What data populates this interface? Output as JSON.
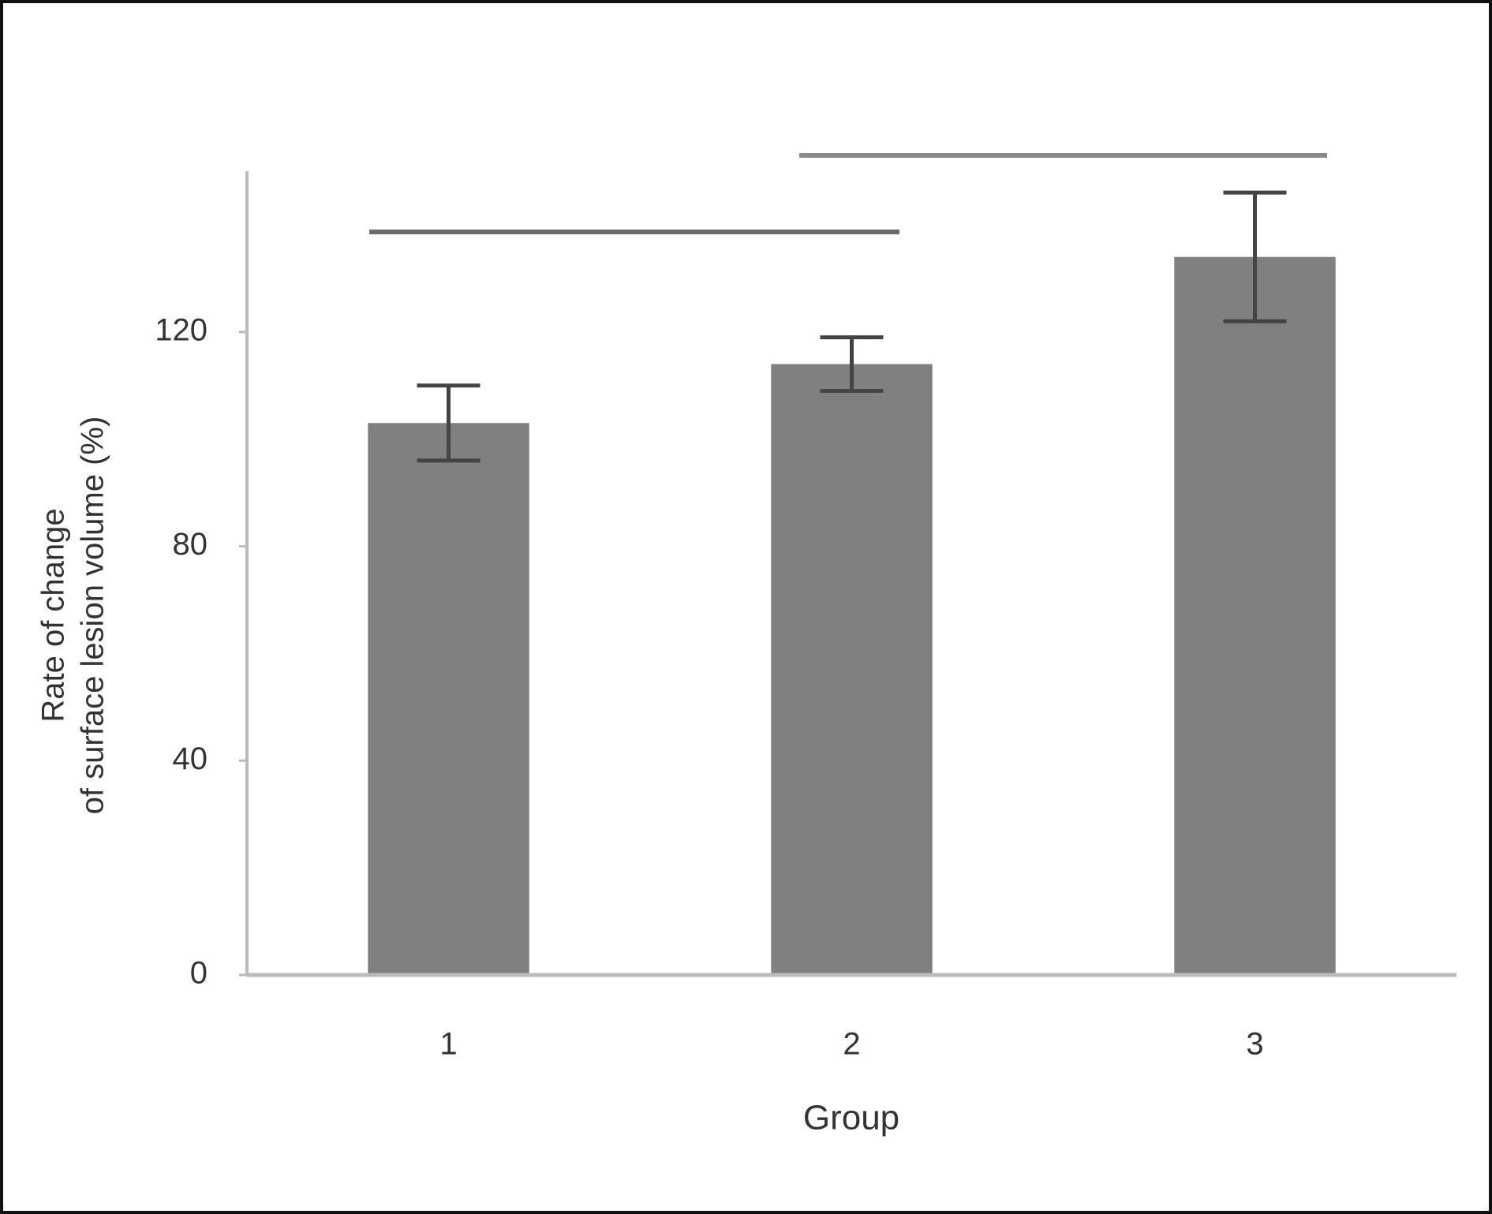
{
  "chart_data": {
    "type": "bar",
    "categories": [
      "1",
      "2",
      "3"
    ],
    "values": [
      103,
      114,
      134
    ],
    "errors": [
      7,
      5,
      12
    ],
    "color": "#808080",
    "ylim": [
      0,
      150
    ],
    "yticks": [
      0,
      40,
      80,
      120
    ],
    "xlabel": "Group",
    "ylabel": [
      "Rate of change",
      "of surface lesion volume (%)"
    ]
  }
}
